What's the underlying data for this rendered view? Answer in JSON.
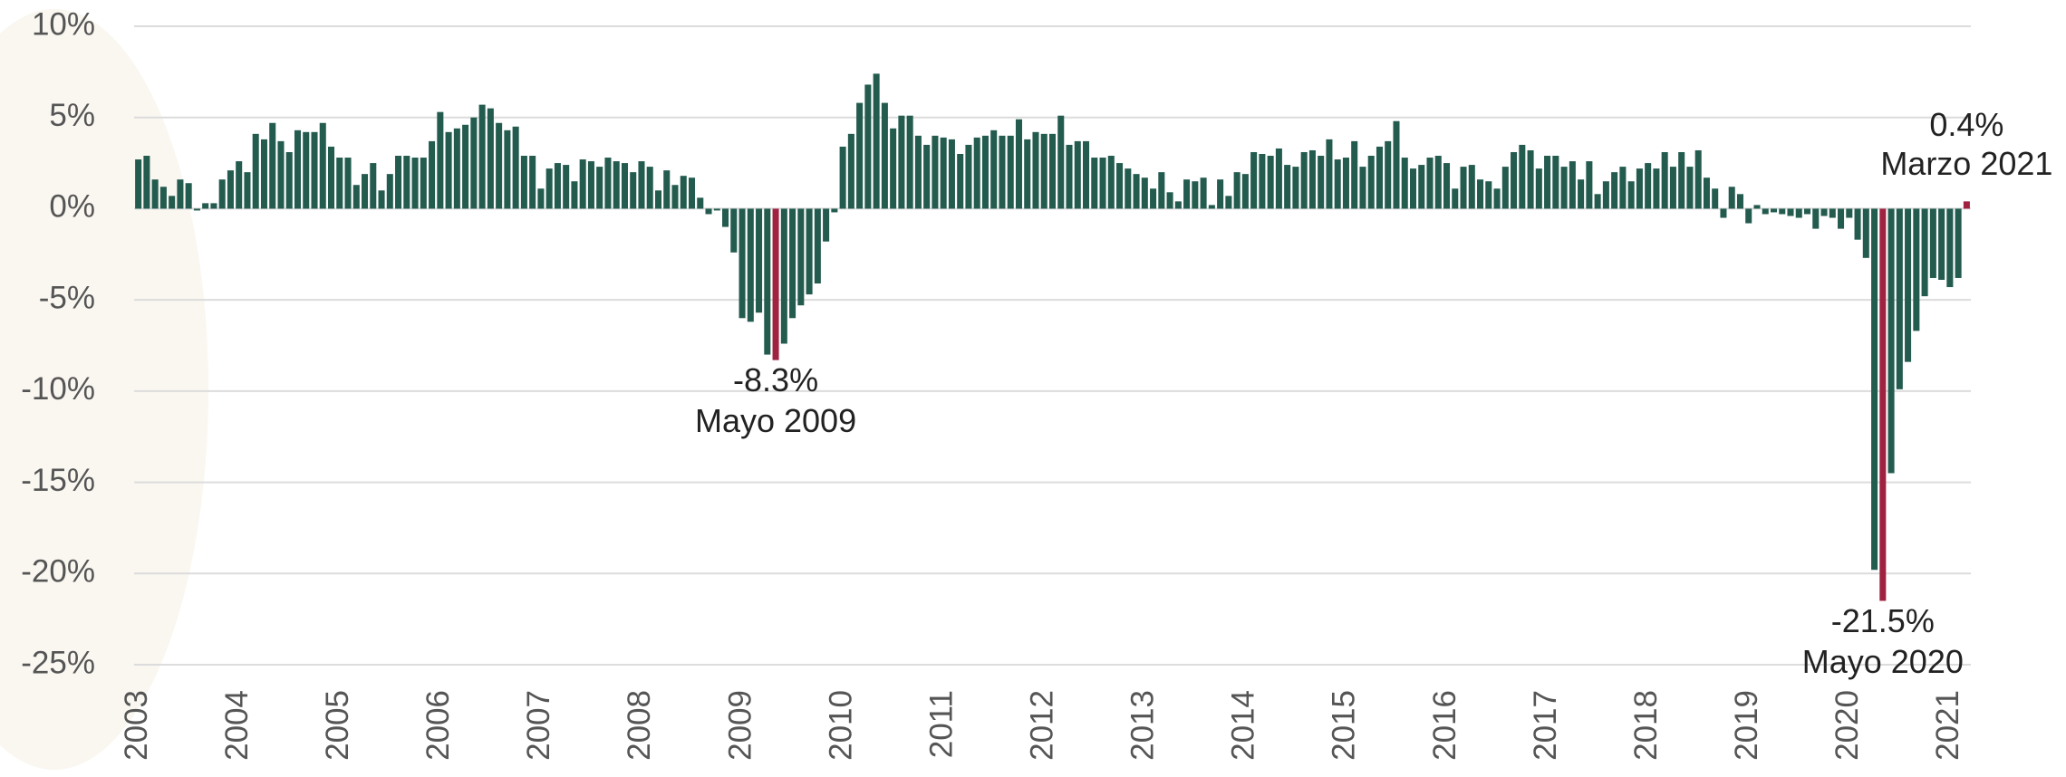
{
  "chart_data": {
    "type": "bar",
    "categories": [
      "2003",
      null,
      null,
      null,
      null,
      null,
      null,
      null,
      null,
      null,
      null,
      null,
      "2004",
      null,
      null,
      null,
      null,
      null,
      null,
      null,
      null,
      null,
      null,
      null,
      "2005",
      null,
      null,
      null,
      null,
      null,
      null,
      null,
      null,
      null,
      null,
      null,
      "2006",
      null,
      null,
      null,
      null,
      null,
      null,
      null,
      null,
      null,
      null,
      null,
      "2007",
      null,
      null,
      null,
      null,
      null,
      null,
      null,
      null,
      null,
      null,
      null,
      "2008",
      null,
      null,
      null,
      null,
      null,
      null,
      null,
      null,
      null,
      null,
      null,
      "2009",
      null,
      null,
      null,
      null,
      null,
      null,
      null,
      null,
      null,
      null,
      null,
      "2010",
      null,
      null,
      null,
      null,
      null,
      null,
      null,
      null,
      null,
      null,
      null,
      "2011",
      null,
      null,
      null,
      null,
      null,
      null,
      null,
      null,
      null,
      null,
      null,
      "2012",
      null,
      null,
      null,
      null,
      null,
      null,
      null,
      null,
      null,
      null,
      null,
      "2013",
      null,
      null,
      null,
      null,
      null,
      null,
      null,
      null,
      null,
      null,
      null,
      "2014",
      null,
      null,
      null,
      null,
      null,
      null,
      null,
      null,
      null,
      null,
      null,
      "2015",
      null,
      null,
      null,
      null,
      null,
      null,
      null,
      null,
      null,
      null,
      null,
      "2016",
      null,
      null,
      null,
      null,
      null,
      null,
      null,
      null,
      null,
      null,
      null,
      "2017",
      null,
      null,
      null,
      null,
      null,
      null,
      null,
      null,
      null,
      null,
      null,
      "2018",
      null,
      null,
      null,
      null,
      null,
      null,
      null,
      null,
      null,
      null,
      null,
      "2019",
      null,
      null,
      null,
      null,
      null,
      null,
      null,
      null,
      null,
      null,
      null,
      "2020",
      null,
      null,
      null,
      null,
      null,
      null,
      null,
      null,
      null,
      null,
      null,
      "2021",
      null,
      null
    ],
    "values": [
      2.7,
      2.9,
      1.6,
      1.2,
      0.7,
      1.6,
      1.4,
      -0.1,
      0.3,
      0.3,
      1.6,
      2.1,
      2.6,
      2.0,
      4.1,
      3.8,
      4.7,
      3.7,
      3.1,
      4.3,
      4.2,
      4.2,
      4.7,
      3.4,
      2.8,
      2.8,
      1.3,
      1.9,
      2.5,
      1.0,
      1.9,
      2.9,
      2.9,
      2.8,
      2.8,
      3.7,
      5.3,
      4.2,
      4.4,
      4.6,
      5.0,
      5.7,
      5.5,
      4.7,
      4.3,
      4.5,
      2.9,
      2.9,
      1.1,
      2.2,
      2.5,
      2.4,
      1.5,
      2.7,
      2.6,
      2.3,
      2.8,
      2.6,
      2.5,
      2.0,
      2.6,
      2.3,
      1.0,
      2.1,
      1.3,
      1.8,
      1.7,
      0.6,
      -0.3,
      -0.1,
      -1.0,
      -2.4,
      -6.0,
      -6.2,
      -5.7,
      -8.0,
      -8.3,
      -7.4,
      -6.0,
      -5.3,
      -4.7,
      -4.1,
      -1.8,
      -0.2,
      3.4,
      4.1,
      5.8,
      6.8,
      7.4,
      5.8,
      4.4,
      5.1,
      5.1,
      4.0,
      3.5,
      4.0,
      3.9,
      3.8,
      3.0,
      3.5,
      3.9,
      4.0,
      4.3,
      4.0,
      4.0,
      4.9,
      3.8,
      4.2,
      4.1,
      4.1,
      5.1,
      3.5,
      3.7,
      3.7,
      2.8,
      2.8,
      2.9,
      2.5,
      2.2,
      1.9,
      1.7,
      1.1,
      2.0,
      0.9,
      0.4,
      1.6,
      1.5,
      1.7,
      0.2,
      1.6,
      0.7,
      2.0,
      1.9,
      3.1,
      3.0,
      2.9,
      3.3,
      2.4,
      2.3,
      3.1,
      3.2,
      2.9,
      3.8,
      2.7,
      2.8,
      3.7,
      2.3,
      2.9,
      3.4,
      3.7,
      4.8,
      2.8,
      2.2,
      2.4,
      2.8,
      2.9,
      2.5,
      1.1,
      2.3,
      2.4,
      1.6,
      1.5,
      1.1,
      2.3,
      3.1,
      3.5,
      3.2,
      2.2,
      2.9,
      2.9,
      2.3,
      2.6,
      1.6,
      2.6,
      0.8,
      1.5,
      2.0,
      2.3,
      1.5,
      2.2,
      2.5,
      2.2,
      3.1,
      2.3,
      3.1,
      2.3,
      3.2,
      1.7,
      1.1,
      -0.5,
      1.2,
      0.8,
      -0.8,
      0.2,
      -0.3,
      -0.2,
      -0.3,
      -0.4,
      -0.5,
      -0.3,
      -1.1,
      -0.4,
      -0.5,
      -1.1,
      -0.5,
      -1.7,
      -2.7,
      -19.8,
      -21.5,
      -14.5,
      -9.9,
      -8.4,
      -6.7,
      -4.8,
      -3.8,
      -3.9,
      -4.3,
      -3.8,
      0.4
    ],
    "value_labels": [
      null,
      null,
      null,
      null,
      null,
      null,
      null,
      null,
      null,
      null,
      null,
      null,
      null,
      null,
      null,
      null,
      null,
      null,
      null,
      null,
      null,
      null,
      null,
      null,
      null,
      null,
      null,
      null,
      null,
      null,
      null,
      null,
      null,
      null,
      null,
      null,
      null,
      null,
      null,
      null,
      null,
      null,
      null,
      null,
      null,
      null,
      null,
      null,
      null,
      null,
      null,
      null,
      null,
      null,
      null,
      null,
      null,
      null,
      null,
      null,
      null,
      null,
      null,
      null,
      null,
      null,
      null,
      null,
      null,
      null,
      null,
      null,
      null,
      null,
      null,
      null,
      "-8.3%",
      null,
      null,
      null,
      null,
      null,
      null,
      null,
      null,
      null,
      null,
      null,
      null,
      null,
      null,
      null,
      null,
      null,
      null,
      null,
      null,
      null,
      null,
      null,
      null,
      null,
      null,
      null,
      null,
      null,
      null,
      null,
      null,
      null,
      null,
      null,
      null,
      null,
      null,
      null,
      null,
      null,
      null,
      null,
      null,
      null,
      null,
      null,
      null,
      null,
      null,
      null,
      null,
      null,
      null,
      null,
      null,
      null,
      null,
      null,
      null,
      null,
      null,
      null,
      null,
      null,
      null,
      null,
      null,
      null,
      null,
      null,
      null,
      null,
      null,
      null,
      null,
      null,
      null,
      null,
      null,
      null,
      null,
      null,
      null,
      null,
      null,
      null,
      null,
      null,
      null,
      null,
      null,
      null,
      null,
      null,
      null,
      null,
      null,
      null,
      null,
      null,
      null,
      null,
      null,
      null,
      null,
      null,
      null,
      null,
      null,
      null,
      null,
      null,
      null,
      null,
      null,
      null,
      null,
      null,
      null,
      null,
      null,
      null,
      null,
      null,
      null,
      null,
      null,
      null,
      null,
      null,
      "-21.5%",
      null,
      null,
      null,
      null,
      null,
      null,
      null,
      null,
      null,
      "0.4%"
    ],
    "annotations": [
      null,
      null,
      null,
      null,
      null,
      null,
      null,
      null,
      null,
      null,
      null,
      null,
      null,
      null,
      null,
      null,
      null,
      null,
      null,
      null,
      null,
      null,
      null,
      null,
      null,
      null,
      null,
      null,
      null,
      null,
      null,
      null,
      null,
      null,
      null,
      null,
      null,
      null,
      null,
      null,
      null,
      null,
      null,
      null,
      null,
      null,
      null,
      null,
      null,
      null,
      null,
      null,
      null,
      null,
      null,
      null,
      null,
      null,
      null,
      null,
      null,
      null,
      null,
      null,
      null,
      null,
      null,
      null,
      null,
      null,
      null,
      null,
      null,
      null,
      null,
      null,
      "Mayo 2009",
      null,
      null,
      null,
      null,
      null,
      null,
      null,
      null,
      null,
      null,
      null,
      null,
      null,
      null,
      null,
      null,
      null,
      null,
      null,
      null,
      null,
      null,
      null,
      null,
      null,
      null,
      null,
      null,
      null,
      null,
      null,
      null,
      null,
      null,
      null,
      null,
      null,
      null,
      null,
      null,
      null,
      null,
      null,
      null,
      null,
      null,
      null,
      null,
      null,
      null,
      null,
      null,
      null,
      null,
      null,
      null,
      null,
      null,
      null,
      null,
      null,
      null,
      null,
      null,
      null,
      null,
      null,
      null,
      null,
      null,
      null,
      null,
      null,
      null,
      null,
      null,
      null,
      null,
      null,
      null,
      null,
      null,
      null,
      null,
      null,
      null,
      null,
      null,
      null,
      null,
      null,
      null,
      null,
      null,
      null,
      null,
      null,
      null,
      null,
      null,
      null,
      null,
      null,
      null,
      null,
      null,
      null,
      null,
      null,
      null,
      null,
      null,
      null,
      null,
      null,
      null,
      null,
      null,
      null,
      null,
      null,
      null,
      null,
      null,
      null,
      null,
      null,
      null,
      null,
      null,
      null,
      "Mayo 2020",
      null,
      null,
      null,
      null,
      null,
      null,
      null,
      null,
      null,
      "Marzo 2021"
    ],
    "color": "#235b4e",
    "highlight_color": "#9f2241",
    "ylim": [
      -25,
      10
    ],
    "yticks": [
      {
        "value": -25,
        "label": "-25%"
      },
      {
        "value": -20,
        "label": "-20%"
      },
      {
        "value": -15,
        "label": "-15%"
      },
      {
        "value": -10,
        "label": "-10%"
      },
      {
        "value": -5,
        "label": "-5%"
      },
      {
        "value": 0,
        "label": "0%"
      },
      {
        "value": 5,
        "label": "5%"
      },
      {
        "value": 10,
        "label": "10%"
      }
    ],
    "grid": true
  }
}
